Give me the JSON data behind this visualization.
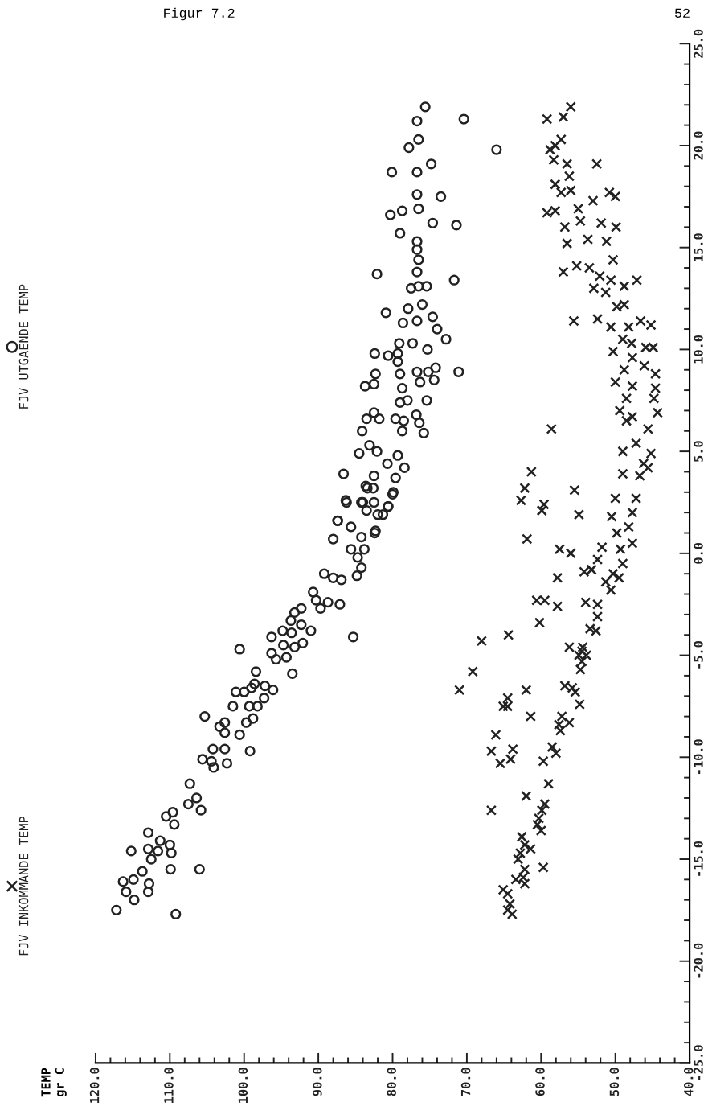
{
  "chart_data": {
    "type": "scatter",
    "title": "Figur 7.2",
    "annotations": [
      "52",
      "TEMP\ngr C"
    ],
    "ylim": [
      -25,
      25
    ],
    "yticks": [
      {
        "value": -25,
        "label": "-25.0"
      },
      {
        "value": -20,
        "label": "-20.0"
      },
      {
        "value": -15,
        "label": "-15.0"
      },
      {
        "value": -10,
        "label": "-10.0"
      },
      {
        "value": -5,
        "label": "-5.0"
      },
      {
        "value": 0,
        "label": "0.0"
      },
      {
        "value": 5,
        "label": "5.0"
      },
      {
        "value": 10,
        "label": "10.0"
      },
      {
        "value": 15,
        "label": "15.0"
      },
      {
        "value": 20,
        "label": "20.0"
      },
      {
        "value": 25,
        "label": "25.0"
      }
    ],
    "xlim": [
      120,
      40
    ],
    "xticks": [
      {
        "value": 40,
        "label": "40.0"
      },
      {
        "value": 50,
        "label": "50.0"
      },
      {
        "value": 60,
        "label": "60.0"
      },
      {
        "value": 70,
        "label": "70.0"
      },
      {
        "value": 80,
        "label": "80.0"
      },
      {
        "value": 90,
        "label": "90.0"
      },
      {
        "value": 100,
        "label": "100.0"
      },
      {
        "value": 110,
        "label": "110.0"
      },
      {
        "value": 120,
        "label": "120.0"
      }
    ],
    "grid": false,
    "legend": "left",
    "series": [
      {
        "name": "FJV INKOMMANDE TEMP",
        "color": "#222222",
        "marker": "cross",
        "values": [
          21.9,
          21.4,
          21.3,
          20.3,
          19.8,
          20.0,
          19.3,
          19.1,
          19.1,
          18.5,
          18.1,
          17.7,
          17.8,
          17.3,
          17.7,
          17.5,
          16.7,
          16.8,
          16.9,
          16.0,
          16.3,
          16.2,
          16.0,
          15.2,
          15.4,
          15.3,
          14.4,
          14.1,
          13.8,
          14.0,
          13.6,
          13.0,
          13.4,
          13.1,
          13.4,
          12.8,
          12.1,
          12.2,
          11.5,
          11.4,
          11.4,
          11.2,
          11.1,
          11.1,
          10.5,
          10.3,
          9.9,
          10.1,
          10.1,
          9.6,
          9.0,
          9.2,
          8.8,
          8.4,
          8.2,
          8.1,
          7.6,
          7.6,
          7.0,
          6.5,
          6.7,
          6.9,
          6.1,
          6.1,
          5.0,
          5.4,
          4.9,
          4.4,
          4.2,
          3.9,
          3.8,
          4.0,
          3.2,
          2.6,
          3.1,
          2.4,
          2.1,
          1.9,
          2.7,
          2.7,
          2.0,
          1.8,
          1.3,
          1.0,
          0.5,
          0.7,
          0.2,
          0.0,
          0.3,
          0.2,
          -0.3,
          -0.8,
          -0.9,
          -0.5,
          -1.2,
          -1.0,
          -1.2,
          -1.4,
          -1.8,
          -2.3,
          -2.3,
          -2.4,
          -2.5,
          -2.6,
          -3.1,
          -3.4,
          -3.7,
          -3.8,
          -4.0,
          -4.3,
          -4.6,
          -4.6,
          -5.0,
          -5.8,
          -4.8,
          -5.0,
          -5.3,
          -5.7,
          -6.7,
          -6.7,
          -6.5,
          -6.6,
          -6.8,
          -7.4,
          -7.1,
          -7.5,
          -7.5,
          -8.0,
          -8.0,
          -8.3,
          -8.4,
          -8.7,
          -8.9,
          -9.7,
          -9.6,
          -10.1,
          -10.3,
          -9.5,
          -9.8,
          -10.2,
          -11.3,
          -11.9,
          -12.6,
          -12.3,
          -12.6,
          -13.0,
          -13.3,
          -13.6,
          -13.9,
          -14.3,
          -14.5,
          -14.7,
          -15.0,
          -15.4,
          -15.5,
          -15.9,
          -16.0,
          -16.2,
          -16.5,
          -16.7,
          -17.2,
          -17.5,
          -17.7
        ],
        "x": [
          56.0,
          57.0,
          59.2,
          57.3,
          58.8,
          58.1,
          58.3,
          56.5,
          52.5,
          56.2,
          58.1,
          57.3,
          56.0,
          53.0,
          50.8,
          50.0,
          59.2,
          58.1,
          55.0,
          56.8,
          54.7,
          51.9,
          49.9,
          56.5,
          53.7,
          51.2,
          50.3,
          55.2,
          57.0,
          53.5,
          52.1,
          52.9,
          50.6,
          48.8,
          47.1,
          51.3,
          49.8,
          48.8,
          52.4,
          55.6,
          46.6,
          45.2,
          48.2,
          50.6,
          49.0,
          47.8,
          50.3,
          45.9,
          44.9,
          47.7,
          48.8,
          46.1,
          44.6,
          50.0,
          47.7,
          44.6,
          48.5,
          44.8,
          49.4,
          48.5,
          47.7,
          44.3,
          45.6,
          58.6,
          49.0,
          47.2,
          45.2,
          46.2,
          45.6,
          49.0,
          46.7,
          61.3,
          62.2,
          62.7,
          55.5,
          59.6,
          59.9,
          54.9,
          50.0,
          47.2,
          47.7,
          50.5,
          48.2,
          49.8,
          47.7,
          61.9,
          57.5,
          56.0,
          51.8,
          49.3,
          52.4,
          53.2,
          54.2,
          49.0,
          57.8,
          50.3,
          49.5,
          51.3,
          50.6,
          60.6,
          59.5,
          54.0,
          52.4,
          57.8,
          52.4,
          60.2,
          53.4,
          52.6,
          64.4,
          68.0,
          56.2,
          54.4,
          54.9,
          69.2,
          54.5,
          53.9,
          54.5,
          54.7,
          71.0,
          62.0,
          56.8,
          55.8,
          55.4,
          54.8,
          64.5,
          65.1,
          64.5,
          61.4,
          57.2,
          56.2,
          57.6,
          57.4,
          66.1,
          66.7,
          63.8,
          64.1,
          65.5,
          58.5,
          58.0,
          59.7,
          59.0,
          62.0,
          66.7,
          59.5,
          59.9,
          60.3,
          60.5,
          60.0,
          62.6,
          62.2,
          61.4,
          62.8,
          63.1,
          59.7,
          62.2,
          62.4,
          63.4,
          62.2,
          65.1,
          64.5,
          64.2,
          64.5,
          63.9
        ]
      },
      {
        "name": "FJV UTGAENDE TEMP",
        "color": "#222222",
        "marker": "circle",
        "values": [
          -17.5,
          -17.7,
          -17.0,
          -16.6,
          -16.6,
          -16.1,
          -16.0,
          -16.2,
          -15.6,
          -15.5,
          -15.5,
          -14.6,
          -15.0,
          -14.5,
          -14.6,
          -14.3,
          -14.7,
          -13.7,
          -14.1,
          -12.9,
          -12.7,
          -13.3,
          -11.3,
          -12.3,
          -12.0,
          -12.6,
          -8.0,
          -8.5,
          -8.3,
          -8.8,
          -9.6,
          -9.6,
          -10.1,
          -10.2,
          -10.5,
          -10.3,
          -8.9,
          -9.7,
          -8.3,
          -7.5,
          -7.5,
          -6.8,
          -6.8,
          -6.6,
          -6.4,
          -5.8,
          -6.5,
          -6.7,
          -7.5,
          -8.1,
          -7.1,
          -4.7,
          -4.1,
          -3.8,
          -3.9,
          -4.5,
          -4.9,
          -5.2,
          -5.1,
          -4.6,
          -4.4,
          -3.8,
          -5.9,
          -3.3,
          -2.9,
          -2.7,
          -3.5,
          -1.9,
          -2.3,
          -2.7,
          -2.4,
          -2.5,
          -4.1,
          -1.0,
          -1.2,
          -1.3,
          0.7,
          1.6,
          2.6,
          2.5,
          0.2,
          0.8,
          -0.2,
          0.2,
          -0.7,
          -1.1,
          1.0,
          2.1,
          1.9,
          1.9,
          2.3,
          3.0,
          3.2,
          3.3,
          21.9,
          21.2,
          21.3,
          19.8,
          20.3,
          19.9,
          19.1,
          18.7,
          18.7,
          17.6,
          17.5,
          16.9,
          16.6,
          16.8,
          16.2,
          16.1,
          15.7,
          15.3,
          14.9,
          14.4,
          13.7,
          13.4,
          13.8,
          13.1,
          13.0,
          13.1,
          12.2,
          11.8,
          11.3,
          12.0,
          11.4,
          11.6,
          11.0,
          10.5,
          10.3,
          10.0,
          9.8,
          9.7,
          9.8,
          9.4,
          10.3,
          8.8,
          8.8,
          8.9,
          8.9,
          9.1,
          8.5,
          8.9,
          8.4,
          8.2,
          8.3,
          8.1,
          7.5,
          7.4,
          7.5,
          6.9,
          6.6,
          6.6,
          6.0,
          6.6,
          6.5,
          6.0,
          6.8,
          6.4,
          5.9,
          4.9,
          5.3,
          5.0,
          4.8,
          4.2,
          3.9,
          3.8,
          4.4,
          3.7,
          3.2,
          2.9,
          2.5,
          2.5,
          2.5,
          2.3,
          1.6,
          1.3,
          1.1
        ],
        "x": [
          117.2,
          109.2,
          114.8,
          115.9,
          112.9,
          116.3,
          114.9,
          112.8,
          113.7,
          109.9,
          106.0,
          115.2,
          112.5,
          112.9,
          111.6,
          110.0,
          109.8,
          112.9,
          111.3,
          110.5,
          109.6,
          109.4,
          107.3,
          107.5,
          106.4,
          105.8,
          105.3,
          103.3,
          102.6,
          102.6,
          104.2,
          102.6,
          105.6,
          104.4,
          104.1,
          102.3,
          100.6,
          99.2,
          99.7,
          99.3,
          101.5,
          101.1,
          100.0,
          99.0,
          98.6,
          98.4,
          97.2,
          96.1,
          98.2,
          98.8,
          97.3,
          100.6,
          96.3,
          94.8,
          93.6,
          94.7,
          96.3,
          95.7,
          94.3,
          93.2,
          92.1,
          91.0,
          93.5,
          93.7,
          93.2,
          92.3,
          92.3,
          90.7,
          90.3,
          89.7,
          88.7,
          87.1,
          85.3,
          89.2,
          88.0,
          86.9,
          88.0,
          87.4,
          86.3,
          84.2,
          85.6,
          84.2,
          84.7,
          83.8,
          84.2,
          84.8,
          82.4,
          83.5,
          82.0,
          81.3,
          80.6,
          79.9,
          82.6,
          83.6,
          75.6,
          76.7,
          70.4,
          66.0,
          76.5,
          77.8,
          74.8,
          80.1,
          76.7,
          76.7,
          73.5,
          76.5,
          80.3,
          78.7,
          74.6,
          71.4,
          79.0,
          76.7,
          76.7,
          76.5,
          82.1,
          71.7,
          76.7,
          76.5,
          77.5,
          75.4,
          76.0,
          80.9,
          78.6,
          77.9,
          76.7,
          74.6,
          74.0,
          72.8,
          77.3,
          75.3,
          82.4,
          80.6,
          79.3,
          79.3,
          79.1,
          82.3,
          79.0,
          76.7,
          75.2,
          74.2,
          74.4,
          71.1,
          76.3,
          83.7,
          82.5,
          78.7,
          75.4,
          79.0,
          78.0,
          82.5,
          83.5,
          81.8,
          84.1,
          79.6,
          78.5,
          78.7,
          76.8,
          76.4,
          75.8,
          84.5,
          83.1,
          82.1,
          79.3,
          78.4,
          86.6,
          82.5,
          80.7,
          79.6,
          83.4,
          80.0,
          86.2,
          84.0,
          82.5,
          80.6,
          87.4,
          85.6,
          82.3
        ]
      }
    ]
  }
}
